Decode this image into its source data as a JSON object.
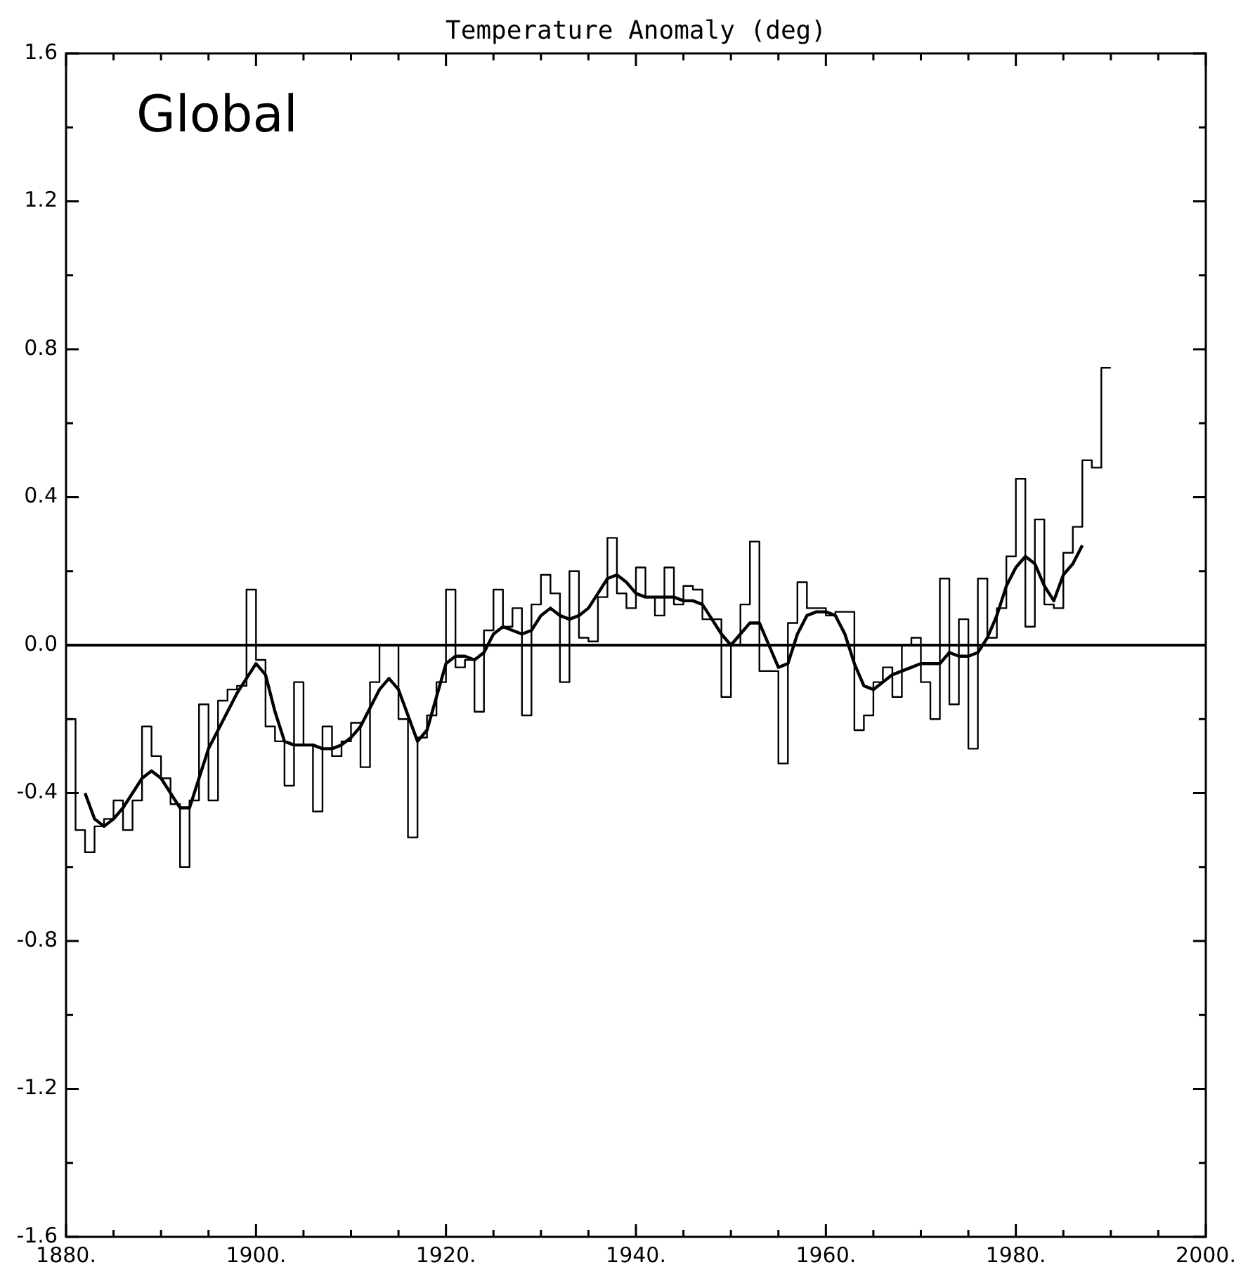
{
  "chart_data": {
    "type": "line",
    "title": "Temperature Anomaly (deg)",
    "annotations": [
      "Global"
    ],
    "xlim": [
      1880,
      2000
    ],
    "xticks": [
      {
        "value": 1880,
        "label": "1880."
      },
      {
        "value": 1885,
        "label": null
      },
      {
        "value": 1890,
        "label": null
      },
      {
        "value": 1895,
        "label": null
      },
      {
        "value": 1900,
        "label": "1900."
      },
      {
        "value": 1905,
        "label": null
      },
      {
        "value": 1910,
        "label": null
      },
      {
        "value": 1915,
        "label": null
      },
      {
        "value": 1920,
        "label": "1920."
      },
      {
        "value": 1925,
        "label": null
      },
      {
        "value": 1930,
        "label": null
      },
      {
        "value": 1935,
        "label": null
      },
      {
        "value": 1940,
        "label": "1940."
      },
      {
        "value": 1945,
        "label": null
      },
      {
        "value": 1950,
        "label": null
      },
      {
        "value": 1955,
        "label": null
      },
      {
        "value": 1960,
        "label": "1960."
      },
      {
        "value": 1965,
        "label": null
      },
      {
        "value": 1970,
        "label": null
      },
      {
        "value": 1975,
        "label": null
      },
      {
        "value": 1980,
        "label": "1980."
      },
      {
        "value": 1985,
        "label": null
      },
      {
        "value": 1990,
        "label": null
      },
      {
        "value": 1995,
        "label": null
      },
      {
        "value": 2000,
        "label": "2000."
      }
    ],
    "ylim": [
      -1.6,
      1.6
    ],
    "yticks": [
      {
        "value": -1.6,
        "label": "-1.6"
      },
      {
        "value": -1.4,
        "label": null
      },
      {
        "value": -1.2,
        "label": "-1.2"
      },
      {
        "value": -1.0,
        "label": null
      },
      {
        "value": -0.8,
        "label": "-0.8"
      },
      {
        "value": -0.6,
        "label": null
      },
      {
        "value": -0.4,
        "label": "-0.4"
      },
      {
        "value": -0.2,
        "label": null
      },
      {
        "value": 0,
        "label": "0.0"
      },
      {
        "value": 0.2,
        "label": null
      },
      {
        "value": 0.4,
        "label": "0.4"
      },
      {
        "value": 0.6,
        "label": null
      },
      {
        "value": 0.8,
        "label": "0.8"
      },
      {
        "value": 1.0,
        "label": null
      },
      {
        "value": 1.2,
        "label": "1.2"
      },
      {
        "value": 1.4,
        "label": null
      },
      {
        "value": 1.6,
        "label": "1.6"
      }
    ],
    "ref_lines": [
      {
        "axis": "y",
        "value": 0,
        "color": "#000000"
      }
    ],
    "legend": false,
    "grid": false,
    "marker": "none",
    "series": [
      {
        "type": "step",
        "color": "#000000",
        "x": [
          1880,
          1881,
          1882,
          1883,
          1884,
          1885,
          1886,
          1887,
          1888,
          1889,
          1890,
          1891,
          1892,
          1893,
          1894,
          1895,
          1896,
          1897,
          1898,
          1899,
          1900,
          1901,
          1902,
          1903,
          1904,
          1905,
          1906,
          1907,
          1908,
          1909,
          1910,
          1911,
          1912,
          1913,
          1914,
          1915,
          1916,
          1917,
          1918,
          1919,
          1920,
          1921,
          1922,
          1923,
          1924,
          1925,
          1926,
          1927,
          1928,
          1929,
          1930,
          1931,
          1932,
          1933,
          1934,
          1935,
          1936,
          1937,
          1938,
          1939,
          1940,
          1941,
          1942,
          1943,
          1944,
          1945,
          1946,
          1947,
          1948,
          1949,
          1950,
          1951,
          1952,
          1953,
          1954,
          1955,
          1956,
          1957,
          1958,
          1959,
          1960,
          1961,
          1962,
          1963,
          1964,
          1965,
          1966,
          1967,
          1968,
          1969,
          1970,
          1971,
          1972,
          1973,
          1974,
          1975,
          1976,
          1977,
          1978,
          1979,
          1980,
          1981,
          1982,
          1983,
          1984,
          1985,
          1986,
          1987,
          1988,
          1989,
          1990
        ],
        "values": [
          -0.3,
          -0.2,
          -0.5,
          -0.56,
          -0.49,
          -0.47,
          -0.42,
          -0.5,
          -0.42,
          -0.22,
          -0.3,
          -0.36,
          -0.43,
          -0.6,
          -0.42,
          -0.16,
          -0.42,
          -0.15,
          -0.12,
          -0.11,
          0.15,
          -0.04,
          -0.22,
          -0.26,
          -0.38,
          -0.1,
          -0.27,
          -0.45,
          -0.22,
          -0.3,
          -0.26,
          -0.21,
          -0.33,
          -0.1,
          0.0,
          0.0,
          -0.2,
          -0.52,
          -0.25,
          -0.19,
          -0.1,
          0.15,
          -0.06,
          -0.04,
          -0.18,
          0.04,
          0.15,
          0.05,
          0.1,
          -0.19,
          0.11,
          0.19,
          0.14,
          -0.1,
          0.2,
          0.02,
          0.01,
          0.13,
          0.29,
          0.14,
          0.1,
          0.21,
          0.13,
          0.08,
          0.21,
          0.11,
          0.16,
          0.15,
          0.07,
          0.07,
          -0.14,
          0.0,
          0.11,
          0.28,
          -0.07,
          -0.07,
          -0.32,
          0.06,
          0.17,
          0.1,
          0.1,
          0.08,
          0.09,
          0.09,
          -0.23,
          -0.19,
          -0.1,
          -0.06,
          -0.14,
          0.0,
          0.02,
          -0.1,
          -0.2,
          0.18,
          -0.16,
          0.07,
          -0.28,
          0.18,
          0.02,
          0.1,
          0.24,
          0.45,
          0.05,
          0.34,
          0.11,
          0.1,
          0.25,
          0.32,
          0.5,
          0.48,
          0.75
        ]
      },
      {
        "type": "line",
        "color": "#000000",
        "x": [
          1882,
          1883,
          1884,
          1885,
          1886,
          1887,
          1888,
          1889,
          1890,
          1891,
          1892,
          1893,
          1894,
          1895,
          1896,
          1897,
          1898,
          1899,
          1900,
          1901,
          1902,
          1903,
          1904,
          1905,
          1906,
          1907,
          1908,
          1909,
          1910,
          1911,
          1912,
          1913,
          1914,
          1915,
          1916,
          1917,
          1918,
          1919,
          1920,
          1921,
          1922,
          1923,
          1924,
          1925,
          1926,
          1927,
          1928,
          1929,
          1930,
          1931,
          1932,
          1933,
          1934,
          1935,
          1936,
          1937,
          1938,
          1939,
          1940,
          1941,
          1942,
          1943,
          1944,
          1945,
          1946,
          1947,
          1948,
          1949,
          1950,
          1951,
          1952,
          1953,
          1954,
          1955,
          1956,
          1957,
          1958,
          1959,
          1960,
          1961,
          1962,
          1963,
          1964,
          1965,
          1966,
          1967,
          1968,
          1969,
          1970,
          1971,
          1972,
          1973,
          1974,
          1975,
          1976,
          1977,
          1978,
          1979,
          1980,
          1981,
          1982,
          1983,
          1984,
          1985,
          1986,
          1987
        ],
        "values": [
          -0.4,
          -0.47,
          -0.49,
          -0.47,
          -0.44,
          -0.4,
          -0.36,
          -0.34,
          -0.36,
          -0.4,
          -0.44,
          -0.44,
          -0.36,
          -0.28,
          -0.23,
          -0.18,
          -0.13,
          -0.09,
          -0.05,
          -0.08,
          -0.18,
          -0.26,
          -0.27,
          -0.27,
          -0.27,
          -0.28,
          -0.28,
          -0.27,
          -0.25,
          -0.22,
          -0.17,
          -0.12,
          -0.09,
          -0.12,
          -0.19,
          -0.26,
          -0.23,
          -0.14,
          -0.05,
          -0.03,
          -0.03,
          -0.04,
          -0.02,
          0.03,
          0.05,
          0.04,
          0.03,
          0.04,
          0.08,
          0.1,
          0.08,
          0.07,
          0.08,
          0.1,
          0.14,
          0.18,
          0.19,
          0.17,
          0.14,
          0.13,
          0.13,
          0.13,
          0.13,
          0.12,
          0.12,
          0.11,
          0.07,
          0.03,
          0.0,
          0.03,
          0.06,
          0.06,
          0.0,
          -0.06,
          -0.05,
          0.03,
          0.08,
          0.09,
          0.09,
          0.08,
          0.03,
          -0.05,
          -0.11,
          -0.12,
          -0.1,
          -0.08,
          -0.07,
          -0.06,
          -0.05,
          -0.05,
          -0.05,
          -0.02,
          -0.03,
          -0.03,
          -0.02,
          0.02,
          0.08,
          0.16,
          0.21,
          0.24,
          0.22,
          0.16,
          0.12,
          0.19,
          0.22,
          0.27
        ]
      }
    ]
  }
}
